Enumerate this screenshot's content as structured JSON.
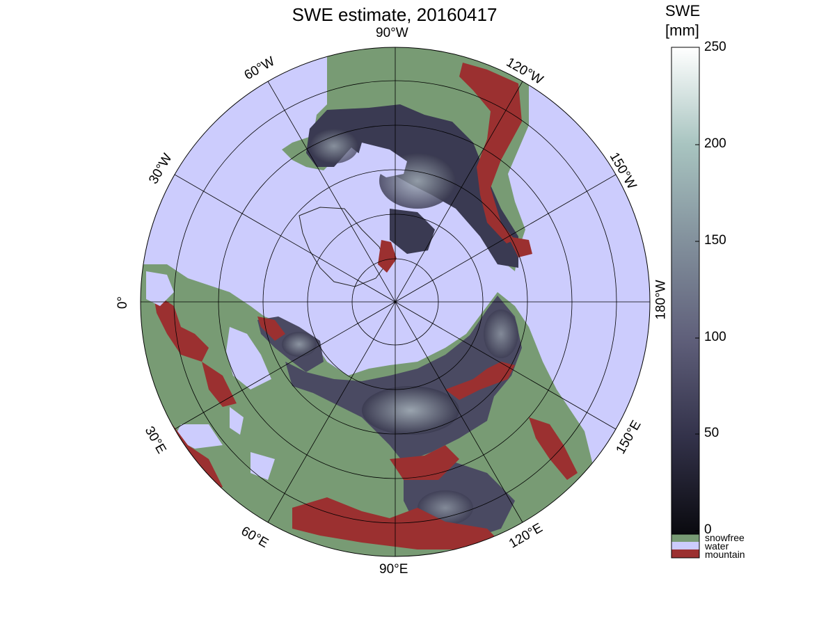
{
  "title": "SWE estimate, 20160417",
  "colorbar": {
    "title_line1": "SWE",
    "title_line2": "[mm]",
    "ticks": [
      "0",
      "50",
      "100",
      "150",
      "200",
      "250"
    ],
    "range": [
      0,
      250
    ],
    "gradient": [
      "#0a0a0f",
      "#33324a",
      "#5f5f7a",
      "#82909c",
      "#a8c4c0",
      "#ffffff"
    ],
    "categories": [
      {
        "label": "snowfree",
        "color": "#789b74"
      },
      {
        "label": "water",
        "color": "#ccccfd"
      },
      {
        "label": "mountain",
        "color": "#9b3030"
      }
    ]
  },
  "map": {
    "projection": "north polar stereographic",
    "ocean_color": "#ccccfd",
    "land_color": "#789b74",
    "mountain_color": "#9b3030",
    "longitude_labels": [
      "90°W",
      "120°W",
      "150°W",
      "180°W",
      "150°E",
      "120°E",
      "90°E",
      "60°E",
      "30°E",
      "0°",
      "30°W",
      "60°W"
    ]
  }
}
